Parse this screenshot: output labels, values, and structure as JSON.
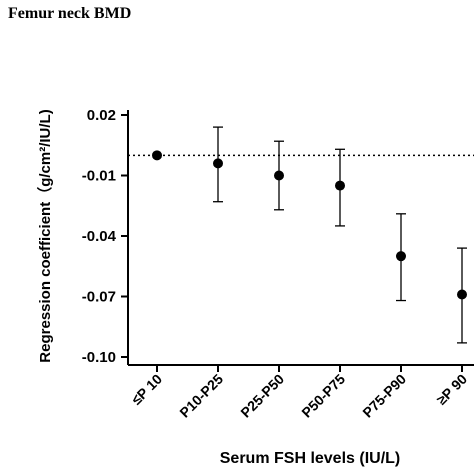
{
  "chart_data": {
    "type": "errorbar",
    "title": "Femur neck BMD",
    "x_label": "Serum FSH levels (IU/L)",
    "y_label": "Regression coefficient（g/cm²/IU/L)",
    "categories": [
      "≤P 10",
      "P10-P25",
      "P25-P50",
      "P50-P75",
      "P75-P90",
      "≥P 90"
    ],
    "values": [
      0.0,
      -0.004,
      -0.01,
      -0.015,
      -0.05,
      -0.069
    ],
    "lower": [
      null,
      -0.023,
      -0.027,
      -0.035,
      -0.072,
      -0.093
    ],
    "upper": [
      null,
      0.014,
      0.007,
      0.003,
      -0.029,
      -0.046
    ],
    "color": "#000000",
    "reference_line": 0,
    "ylim": [
      -0.1,
      0.02
    ],
    "yticks": [
      0.02,
      -0.01,
      -0.04,
      -0.07,
      {
        "value": -0.1,
        "label": "-0.10"
      }
    ]
  }
}
